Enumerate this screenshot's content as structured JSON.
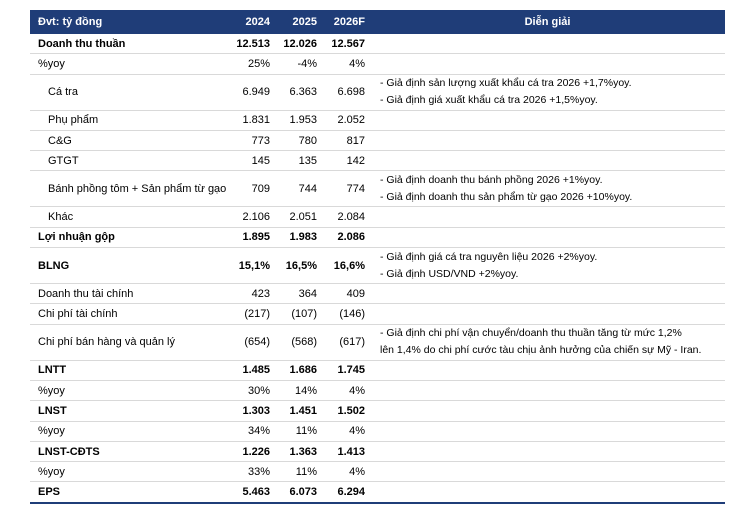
{
  "header": {
    "unit": "Đvt: tỷ đồng",
    "columns": [
      "2024",
      "2025",
      "2026F"
    ],
    "note_header": "Diễn giải"
  },
  "rows": [
    {
      "label": "Doanh thu thuần",
      "values": [
        "12.513",
        "12.026",
        "12.567"
      ],
      "notes": []
    },
    {
      "label": "%yoy",
      "values": [
        "25%",
        "-4%",
        "4%"
      ],
      "notes": []
    },
    {
      "label": "Cá tra",
      "values": [
        "6.949",
        "6.363",
        "6.698"
      ],
      "notes": [
        "- Giả định sản lượng xuất khẩu cá tra 2026 +1,7%yoy.",
        "- Giả định giá xuất khẩu cá tra 2026 +1,5%yoy."
      ]
    },
    {
      "label": "Phụ phẩm",
      "values": [
        "1.831",
        "1.953",
        "2.052"
      ],
      "notes": []
    },
    {
      "label": "C&G",
      "values": [
        "773",
        "780",
        "817"
      ],
      "notes": []
    },
    {
      "label": "GTGT",
      "values": [
        "145",
        "135",
        "142"
      ],
      "notes": []
    },
    {
      "label": "Bánh phồng tôm + Sản phẩm từ gạo",
      "values": [
        "709",
        "744",
        "774"
      ],
      "notes": [
        "- Giả định doanh thu bánh phồng 2026 +1%yoy.",
        "- Giả định doanh thu sản phẩm từ gạo 2026 +10%yoy."
      ]
    },
    {
      "label": "Khác",
      "values": [
        "2.106",
        "2.051",
        "2.084"
      ],
      "notes": []
    },
    {
      "label": "Lợi nhuận gộp",
      "values": [
        "1.895",
        "1.983",
        "2.086"
      ],
      "notes": []
    },
    {
      "label": "BLNG",
      "values": [
        "15,1%",
        "16,5%",
        "16,6%"
      ],
      "notes": [
        "- Giả định giá cá tra nguyên liệu 2026 +2%yoy.",
        "- Giả định USD/VND +2%yoy."
      ]
    },
    {
      "label": "Doanh thu tài chính",
      "values": [
        "423",
        "364",
        "409"
      ],
      "notes": []
    },
    {
      "label": "Chi phí tài chính",
      "values": [
        "(217)",
        "(107)",
        "(146)"
      ],
      "notes": []
    },
    {
      "label": "Chi phí bán hàng và quản lý",
      "values": [
        "(654)",
        "(568)",
        "(617)"
      ],
      "notes": [
        "- Giả định chi phí vận chuyển/doanh thu thuần tăng từ mức 1,2%",
        "lên 1,4% do chi phí cước tàu chịu ảnh hưởng của chiến sự Mỹ - Iran."
      ]
    },
    {
      "label": "LNTT",
      "values": [
        "1.485",
        "1.686",
        "1.745"
      ],
      "notes": []
    },
    {
      "label": "%yoy",
      "values": [
        "30%",
        "14%",
        "4%"
      ],
      "notes": []
    },
    {
      "label": "LNST",
      "values": [
        "1.303",
        "1.451",
        "1.502"
      ],
      "notes": []
    },
    {
      "label": "%yoy",
      "values": [
        "34%",
        "11%",
        "4%"
      ],
      "notes": []
    },
    {
      "label": "LNST-CĐTS",
      "values": [
        "1.226",
        "1.363",
        "1.413"
      ],
      "notes": []
    },
    {
      "label": "%yoy",
      "values": [
        "33%",
        "11%",
        "4%"
      ],
      "notes": []
    },
    {
      "label": "EPS",
      "values": [
        "5.463",
        "6.073",
        "6.294"
      ],
      "notes": []
    }
  ]
}
